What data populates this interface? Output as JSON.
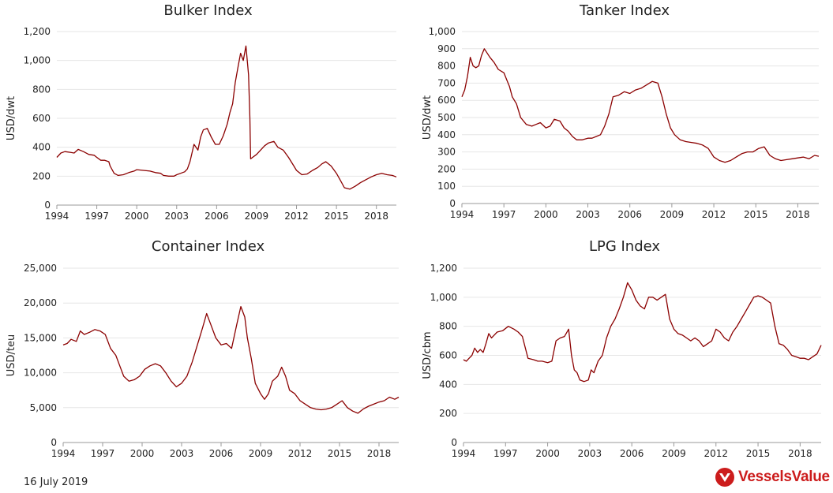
{
  "footer": {
    "date": "16 July 2019"
  },
  "brand": {
    "name": "VesselsValue",
    "color": "#cc1c1c"
  },
  "style": {
    "line_color": "#8b0000",
    "grid_color": "#e6e6e6",
    "axis_color": "#999999"
  },
  "chart_data": [
    {
      "type": "line",
      "title": "Bulker Index",
      "xlabel": "",
      "ylabel": "USD/dwt",
      "xlim": [
        1994,
        2019.5
      ],
      "ylim": [
        0,
        1200
      ],
      "xticks": [
        "1994",
        "1997",
        "2000",
        "2003",
        "2006",
        "2009",
        "2012",
        "2015",
        "2018"
      ],
      "yticks": [
        "0",
        "200",
        "400",
        "600",
        "800",
        "1,000",
        "1,200"
      ],
      "grid": true,
      "legend": "none",
      "series": [
        {
          "x": [
            1994.0,
            1994.3,
            1994.6,
            1995.0,
            1995.3,
            1995.6,
            1996.0,
            1996.4,
            1996.8,
            1997.0,
            1997.3,
            1997.6,
            1997.9,
            1998.0,
            1998.3,
            1998.6,
            1999.0,
            1999.4,
            1999.8,
            2000.0,
            2000.5,
            2001.0,
            2001.4,
            2001.8,
            2002.0,
            2002.4,
            2002.8,
            2003.0,
            2003.3,
            2003.6,
            2003.8,
            2004.0,
            2004.3,
            2004.6,
            2004.8,
            2005.0,
            2005.3,
            2005.6,
            2005.9,
            2006.2,
            2006.5,
            2006.8,
            2007.0,
            2007.2,
            2007.4,
            2007.6,
            2007.8,
            2008.0,
            2008.2,
            2008.4,
            2008.5,
            2008.55,
            2008.7,
            2009.0,
            2009.3,
            2009.6,
            2009.9,
            2010.3,
            2010.6,
            2011.0,
            2011.4,
            2011.8,
            2012.0,
            2012.4,
            2012.8,
            2013.2,
            2013.6,
            2013.9,
            2014.2,
            2014.6,
            2015.0,
            2015.3,
            2015.6,
            2016.0,
            2016.4,
            2016.8,
            2017.2,
            2017.6,
            2018.0,
            2018.4,
            2018.8,
            2019.2,
            2019.5
          ],
          "y": [
            330,
            360,
            370,
            365,
            360,
            385,
            370,
            350,
            345,
            330,
            310,
            310,
            300,
            270,
            220,
            205,
            210,
            225,
            235,
            245,
            240,
            235,
            225,
            220,
            205,
            200,
            200,
            210,
            220,
            230,
            250,
            300,
            420,
            380,
            470,
            520,
            530,
            470,
            420,
            420,
            480,
            560,
            640,
            700,
            850,
            950,
            1050,
            1000,
            1100,
            900,
            600,
            320,
            330,
            350,
            380,
            410,
            430,
            440,
            400,
            380,
            330,
            270,
            240,
            210,
            215,
            240,
            260,
            285,
            300,
            270,
            220,
            170,
            120,
            110,
            130,
            155,
            175,
            195,
            210,
            220,
            210,
            205,
            195
          ]
        }
      ]
    },
    {
      "type": "line",
      "title": "Tanker Index",
      "xlabel": "",
      "ylabel": "USD/dwt",
      "xlim": [
        1994,
        2019.5
      ],
      "ylim": [
        0,
        1000
      ],
      "xticks": [
        "1994",
        "1997",
        "2000",
        "2003",
        "2006",
        "2009",
        "2012",
        "2015",
        "2018"
      ],
      "yticks": [
        "0",
        "100",
        "200",
        "300",
        "400",
        "500",
        "600",
        "700",
        "800",
        "900",
        "1,000"
      ],
      "grid": true,
      "legend": "none",
      "series": [
        {
          "x": [
            1994.0,
            1994.2,
            1994.4,
            1994.6,
            1994.8,
            1995.0,
            1995.2,
            1995.4,
            1995.6,
            1996.0,
            1996.3,
            1996.6,
            1997.0,
            1997.2,
            1997.4,
            1997.6,
            1997.9,
            1998.2,
            1998.6,
            1999.0,
            1999.3,
            1999.6,
            2000.0,
            2000.3,
            2000.6,
            2001.0,
            2001.3,
            2001.6,
            2001.9,
            2002.2,
            2002.6,
            2003.0,
            2003.3,
            2003.6,
            2003.9,
            2004.2,
            2004.5,
            2004.8,
            2005.2,
            2005.6,
            2006.0,
            2006.4,
            2006.8,
            2007.2,
            2007.6,
            2008.0,
            2008.3,
            2008.6,
            2008.9,
            2009.2,
            2009.6,
            2010.0,
            2010.4,
            2010.8,
            2011.2,
            2011.6,
            2012.0,
            2012.4,
            2012.8,
            2013.2,
            2013.6,
            2014.0,
            2014.4,
            2014.8,
            2015.2,
            2015.6,
            2016.0,
            2016.4,
            2016.8,
            2017.2,
            2017.6,
            2018.0,
            2018.4,
            2018.8,
            2019.2,
            2019.5
          ],
          "y": [
            620,
            660,
            740,
            850,
            800,
            790,
            800,
            860,
            900,
            850,
            820,
            780,
            760,
            720,
            680,
            620,
            580,
            500,
            460,
            450,
            460,
            470,
            440,
            450,
            490,
            480,
            440,
            420,
            390,
            370,
            370,
            380,
            380,
            390,
            400,
            450,
            520,
            620,
            630,
            650,
            640,
            660,
            670,
            690,
            710,
            700,
            620,
            520,
            440,
            400,
            370,
            360,
            355,
            350,
            340,
            320,
            270,
            250,
            240,
            250,
            270,
            290,
            300,
            300,
            320,
            330,
            280,
            260,
            250,
            255,
            260,
            265,
            270,
            260,
            280,
            275
          ]
        }
      ]
    },
    {
      "type": "line",
      "title": "Container Index",
      "xlabel": "",
      "ylabel": "USD/teu",
      "xlim": [
        1994,
        2019.5
      ],
      "ylim": [
        0,
        25000
      ],
      "xticks": [
        "1994",
        "1997",
        "2000",
        "2003",
        "2006",
        "2009",
        "2012",
        "2015",
        "2018"
      ],
      "yticks": [
        "0",
        "5,000",
        "10,000",
        "15,000",
        "20,000",
        "25,000"
      ],
      "grid": true,
      "legend": "none",
      "series": [
        {
          "x": [
            1994.0,
            1994.3,
            1994.6,
            1995.0,
            1995.3,
            1995.6,
            1996.0,
            1996.4,
            1996.8,
            1997.2,
            1997.6,
            1998.0,
            1998.3,
            1998.6,
            1999.0,
            1999.4,
            1999.8,
            2000.2,
            2000.6,
            2001.0,
            2001.4,
            2001.8,
            2002.2,
            2002.6,
            2003.0,
            2003.4,
            2003.8,
            2004.2,
            2004.6,
            2004.9,
            2005.2,
            2005.6,
            2006.0,
            2006.4,
            2006.8,
            2007.2,
            2007.5,
            2007.8,
            2008.0,
            2008.3,
            2008.6,
            2009.0,
            2009.3,
            2009.6,
            2009.9,
            2010.3,
            2010.6,
            2010.9,
            2011.2,
            2011.6,
            2012.0,
            2012.4,
            2012.8,
            2013.2,
            2013.6,
            2014.0,
            2014.4,
            2014.8,
            2015.2,
            2015.6,
            2016.0,
            2016.4,
            2016.8,
            2017.2,
            2017.6,
            2018.0,
            2018.4,
            2018.8,
            2019.2,
            2019.5
          ],
          "y": [
            14000,
            14200,
            14800,
            14500,
            16000,
            15500,
            15800,
            16200,
            16000,
            15500,
            13500,
            12500,
            11000,
            9500,
            8800,
            9000,
            9500,
            10500,
            11000,
            11300,
            11000,
            10000,
            8800,
            8000,
            8500,
            9500,
            11500,
            14000,
            16500,
            18500,
            17000,
            15000,
            14000,
            14200,
            13500,
            17000,
            19500,
            18000,
            15000,
            12000,
            8500,
            7000,
            6200,
            7000,
            8800,
            9500,
            10800,
            9500,
            7500,
            7000,
            6000,
            5500,
            5000,
            4800,
            4700,
            4800,
            5000,
            5500,
            6000,
            5000,
            4500,
            4200,
            4800,
            5200,
            5500,
            5800,
            6000,
            6500,
            6200,
            6500
          ]
        }
      ]
    },
    {
      "type": "line",
      "title": "LPG Index",
      "xlabel": "",
      "ylabel": "USD/cbm",
      "xlim": [
        1994,
        2019.5
      ],
      "ylim": [
        0,
        1200
      ],
      "xticks": [
        "1994",
        "1997",
        "2000",
        "2003",
        "2006",
        "2009",
        "2012",
        "2015",
        "2018"
      ],
      "yticks": [
        "0",
        "200",
        "400",
        "600",
        "800",
        "1,000",
        "1,200"
      ],
      "grid": true,
      "legend": "none",
      "series": [
        {
          "x": [
            1994.0,
            1994.2,
            1994.4,
            1994.6,
            1994.8,
            1995.0,
            1995.2,
            1995.4,
            1995.6,
            1995.8,
            1996.0,
            1996.2,
            1996.4,
            1996.8,
            1997.2,
            1997.6,
            1997.9,
            1998.2,
            1998.6,
            1999.0,
            1999.3,
            1999.6,
            2000.0,
            2000.3,
            2000.6,
            2000.9,
            2001.2,
            2001.5,
            2001.7,
            2001.9,
            2002.1,
            2002.3,
            2002.6,
            2002.9,
            2003.1,
            2003.3,
            2003.6,
            2003.9,
            2004.2,
            2004.5,
            2004.8,
            2005.1,
            2005.4,
            2005.7,
            2006.0,
            2006.3,
            2006.6,
            2006.9,
            2007.2,
            2007.5,
            2007.8,
            2008.1,
            2008.4,
            2008.7,
            2009.0,
            2009.3,
            2009.6,
            2009.9,
            2010.2,
            2010.5,
            2010.8,
            2011.1,
            2011.4,
            2011.7,
            2012.0,
            2012.3,
            2012.6,
            2012.9,
            2013.2,
            2013.5,
            2013.8,
            2014.1,
            2014.4,
            2014.7,
            2015.0,
            2015.3,
            2015.6,
            2015.9,
            2016.2,
            2016.5,
            2016.8,
            2017.1,
            2017.4,
            2017.7,
            2018.0,
            2018.3,
            2018.6,
            2018.9,
            2019.2,
            2019.5
          ],
          "y": [
            570,
            560,
            580,
            600,
            650,
            620,
            640,
            620,
            680,
            750,
            720,
            740,
            760,
            770,
            800,
            780,
            760,
            730,
            580,
            570,
            560,
            560,
            550,
            560,
            700,
            720,
            730,
            780,
            600,
            500,
            480,
            430,
            420,
            430,
            500,
            480,
            560,
            600,
            720,
            800,
            850,
            920,
            1000,
            1100,
            1050,
            980,
            940,
            920,
            1000,
            1000,
            980,
            1000,
            1020,
            850,
            780,
            750,
            740,
            720,
            700,
            720,
            700,
            660,
            680,
            700,
            780,
            760,
            720,
            700,
            760,
            800,
            850,
            900,
            950,
            1000,
            1010,
            1000,
            980,
            960,
            800,
            680,
            670,
            640,
            600,
            590,
            580,
            580,
            570,
            590,
            610,
            670
          ]
        }
      ]
    }
  ]
}
